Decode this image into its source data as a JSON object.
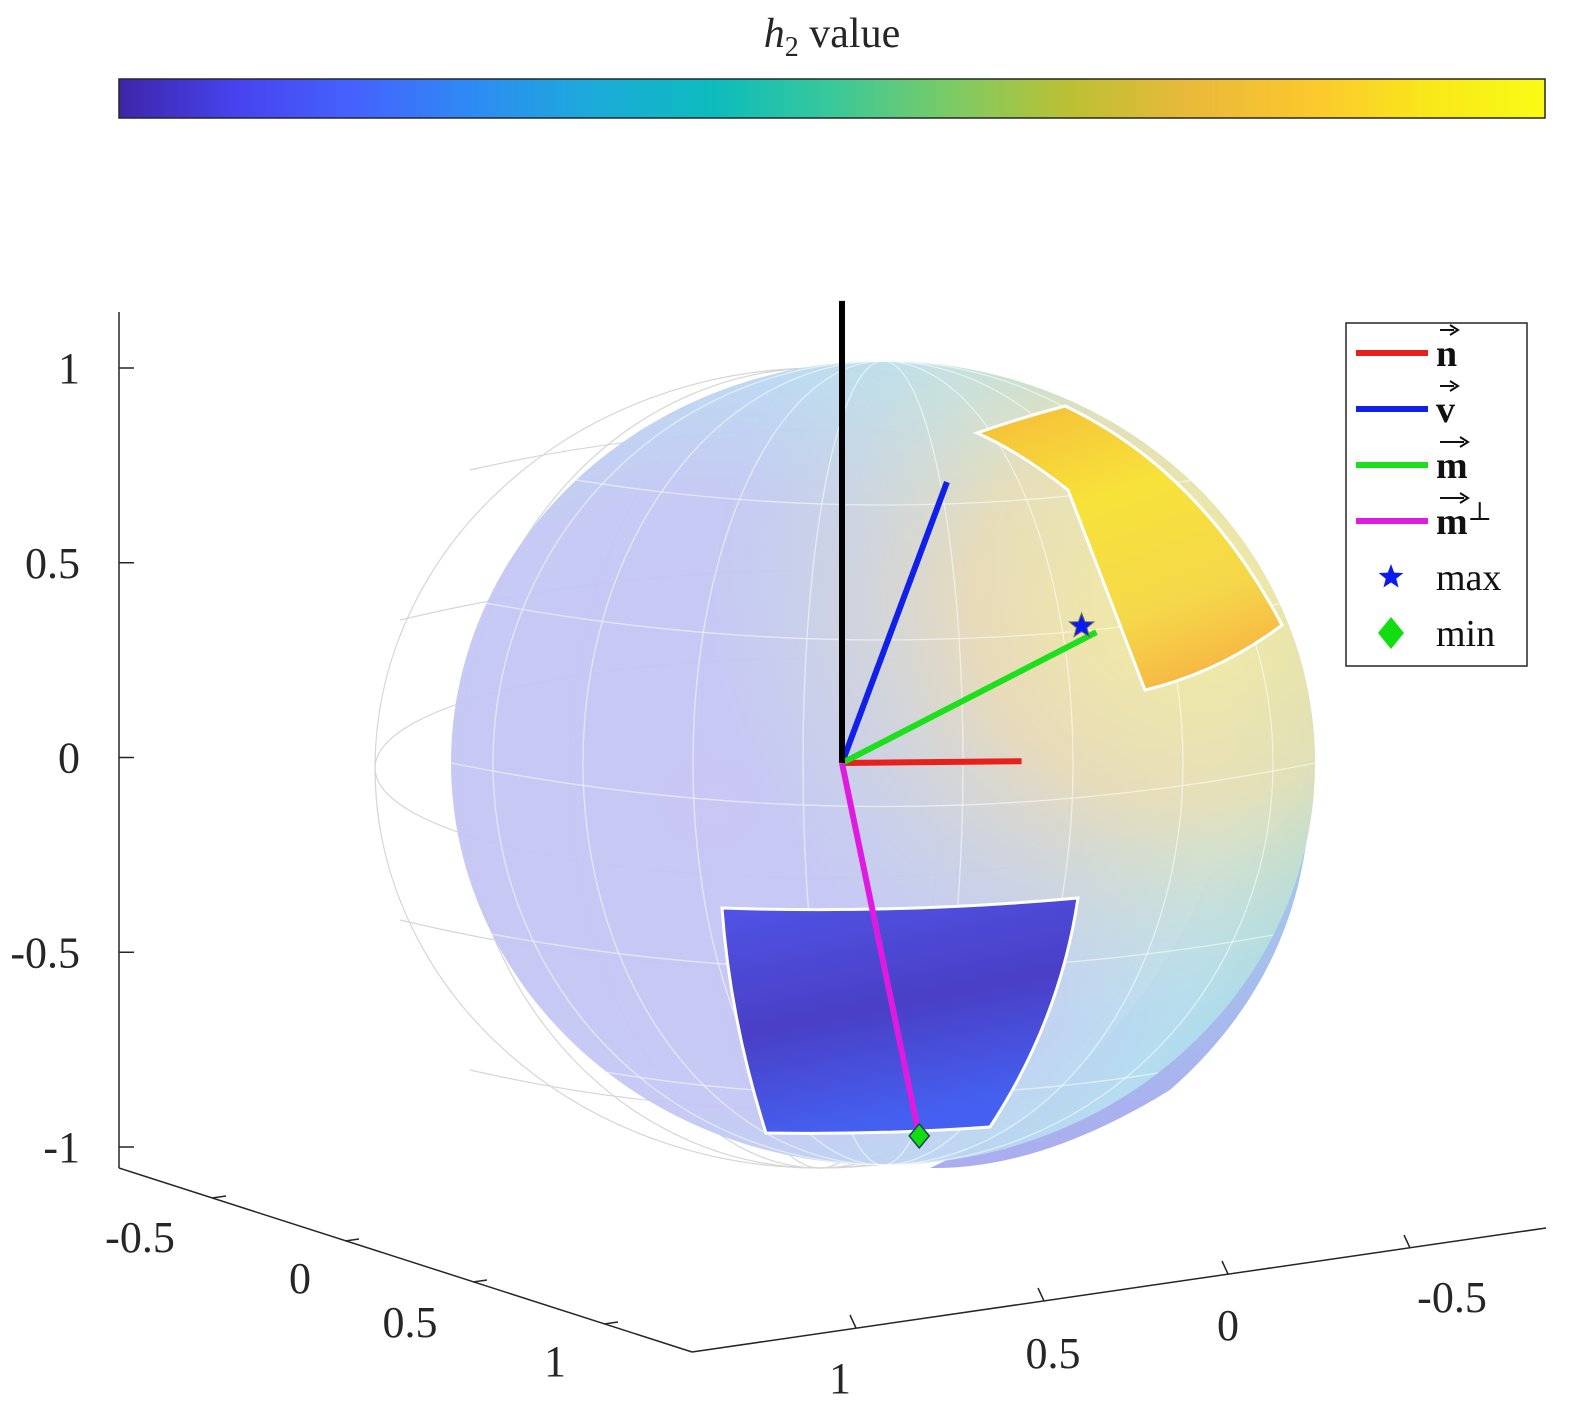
{
  "chart_data": {
    "type": "surface3d",
    "colorbar": {
      "label_symbol": "h",
      "label_subscript": "2",
      "label_rest": " value",
      "colormap": [
        "#3e26a8",
        "#4743f0",
        "#4563fe",
        "#2d8cf3",
        "#1cabd9",
        "#0cbcbd",
        "#39c89a",
        "#7bcb66",
        "#bcc034",
        "#e9b93a",
        "#fbc72e",
        "#f9e71a",
        "#f9fb15"
      ]
    },
    "axes": {
      "z_ticks": [
        "1",
        "0.5",
        "0",
        "-0.5",
        "-1"
      ],
      "z_values": [
        1,
        0.5,
        0,
        -0.5,
        -1
      ],
      "left_axis_ticks": [
        "-0.5",
        "0",
        "0.5",
        "1"
      ],
      "right_axis_ticks": [
        "1",
        "0.5",
        "0",
        "-0.5"
      ],
      "zlim": [
        -1,
        1
      ]
    },
    "sphere": {
      "radius": 1,
      "wireframe": true,
      "surface_colored_by": "h2"
    },
    "vectors": [
      {
        "name": "n",
        "color": "#e8201c",
        "direction": [
          0.62,
          -0.05,
          0.18
        ]
      },
      {
        "name": "v",
        "color": "#1020e8",
        "direction": [
          0.32,
          0.15,
          0.84
        ]
      },
      {
        "name": "m",
        "color": "#1be01b",
        "direction": [
          0.85,
          0.05,
          0.6
        ]
      },
      {
        "name": "m_perp",
        "color": "#e01be0",
        "direction": [
          0.12,
          0.6,
          -0.72
        ]
      },
      {
        "name": "vertical",
        "color": "#000000",
        "direction": [
          0,
          0,
          1.15
        ]
      }
    ],
    "markers": {
      "max": {
        "symbol": "star",
        "color": "#0b1bf0",
        "position": [
          0.8,
          0.05,
          0.6
        ]
      },
      "min": {
        "symbol": "diamond",
        "color": "#11dd11",
        "position": [
          0.12,
          0.6,
          -0.72
        ]
      }
    },
    "legend": {
      "placement": "top-right",
      "entries": [
        {
          "label": "n",
          "bold": true,
          "arrow": true,
          "sup": "",
          "color": "#e8201c",
          "kind": "line"
        },
        {
          "label": "v",
          "bold": true,
          "arrow": true,
          "sup": "",
          "color": "#1020e8",
          "kind": "line"
        },
        {
          "label": "m",
          "bold": true,
          "arrow": true,
          "sup": "",
          "color": "#1be01b",
          "kind": "line"
        },
        {
          "label": "m",
          "bold": true,
          "arrow": true,
          "sup": "⊥",
          "color": "#e01be0",
          "kind": "line"
        },
        {
          "label": "max",
          "bold": false,
          "arrow": false,
          "sup": "",
          "color": "#0b1bf0",
          "kind": "star"
        },
        {
          "label": "min",
          "bold": false,
          "arrow": false,
          "sup": "",
          "color": "#11dd11",
          "kind": "diamond"
        }
      ]
    }
  }
}
